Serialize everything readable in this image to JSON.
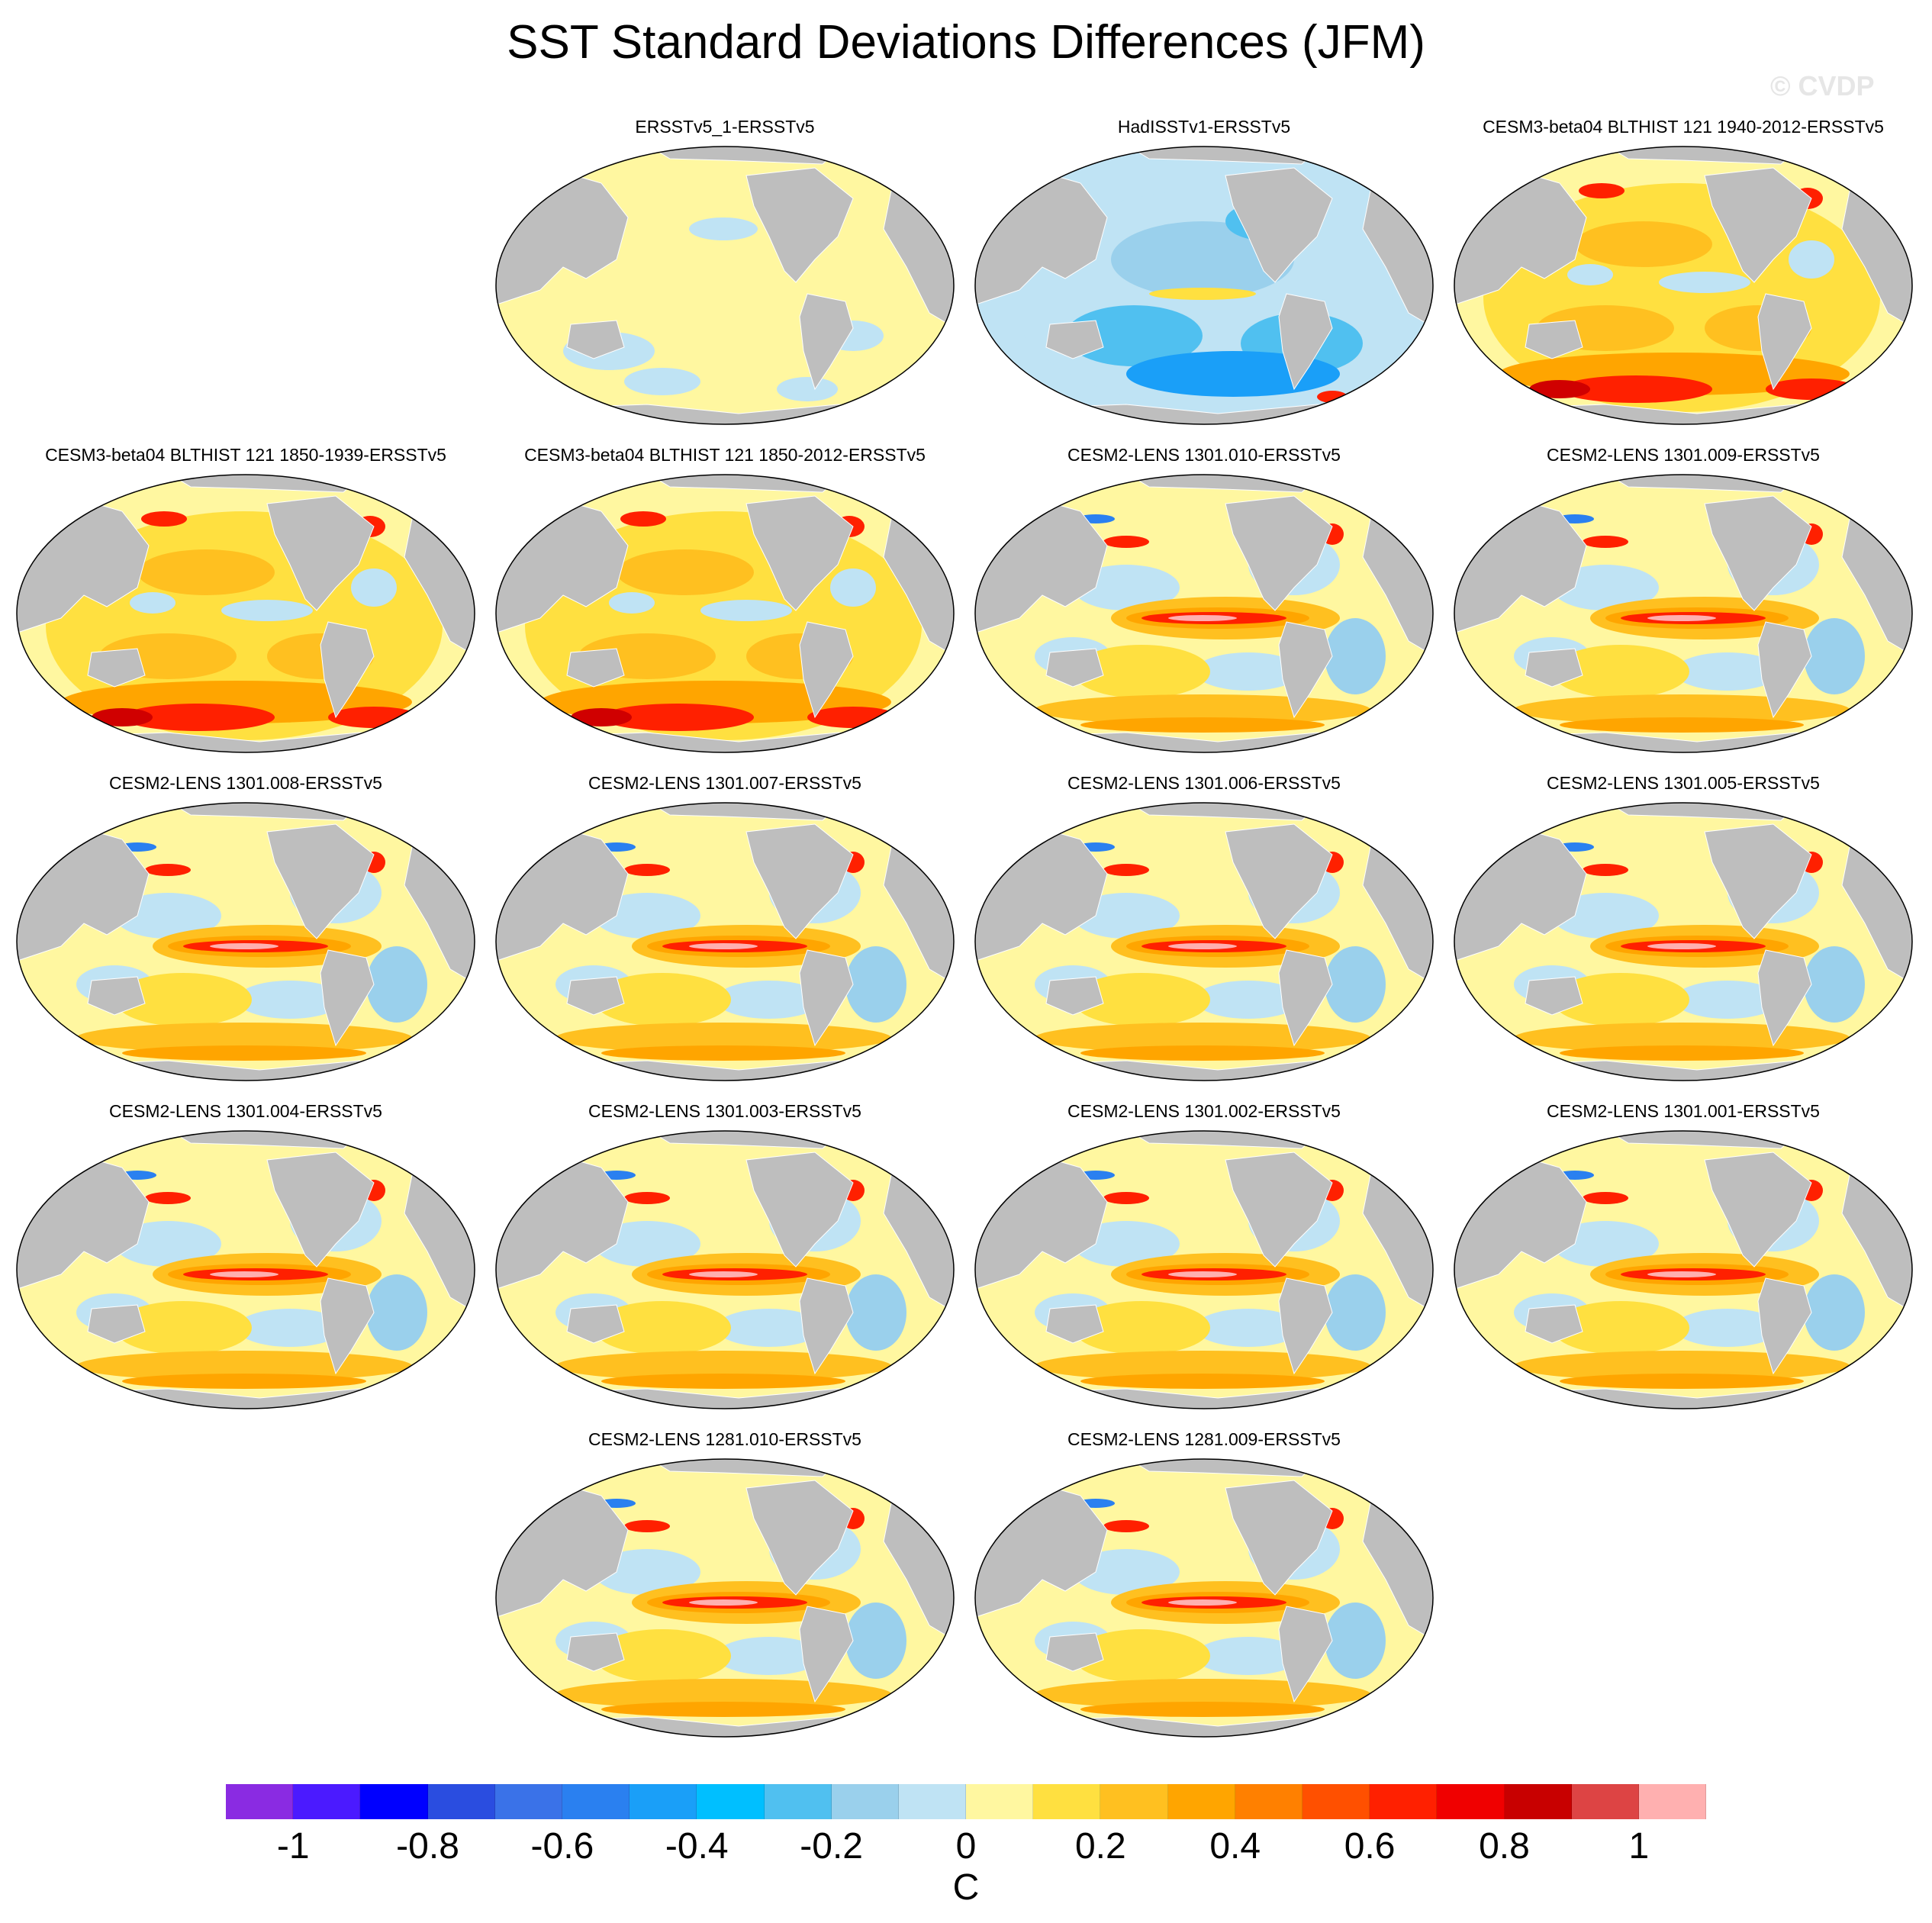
{
  "figure": {
    "title": "SST Standard Deviations Differences (JFM)",
    "watermark": "© CVDP",
    "units": "C"
  },
  "panels": [
    {
      "title": "ERSSTv5_1-ERSSTv5",
      "pattern": "near-zero"
    },
    {
      "title": "HadISSTv1-ERSSTv5",
      "pattern": "negative"
    },
    {
      "title": "CESM3-beta04 BLTHIST 121 1940-2012-ERSSTv5",
      "pattern": "cesm3"
    },
    {
      "title": "CESM3-beta04 BLTHIST 121 1850-1939-ERSSTv5",
      "pattern": "cesm3"
    },
    {
      "title": "CESM3-beta04 BLTHIST 121 1850-2012-ERSSTv5",
      "pattern": "cesm3"
    },
    {
      "title": "CESM2-LENS 1301.010-ERSSTv5",
      "pattern": "enso"
    },
    {
      "title": "CESM2-LENS 1301.009-ERSSTv5",
      "pattern": "enso"
    },
    {
      "title": "CESM2-LENS 1301.008-ERSSTv5",
      "pattern": "enso"
    },
    {
      "title": "CESM2-LENS 1301.007-ERSSTv5",
      "pattern": "enso"
    },
    {
      "title": "CESM2-LENS 1301.006-ERSSTv5",
      "pattern": "enso"
    },
    {
      "title": "CESM2-LENS 1301.005-ERSSTv5",
      "pattern": "enso"
    },
    {
      "title": "CESM2-LENS 1301.004-ERSSTv5",
      "pattern": "enso"
    },
    {
      "title": "CESM2-LENS 1301.003-ERSSTv5",
      "pattern": "enso"
    },
    {
      "title": "CESM2-LENS 1301.002-ERSSTv5",
      "pattern": "enso"
    },
    {
      "title": "CESM2-LENS 1301.001-ERSSTv5",
      "pattern": "enso"
    },
    {
      "title": "CESM2-LENS 1281.010-ERSSTv5",
      "pattern": "enso"
    },
    {
      "title": "CESM2-LENS 1281.009-ERSSTv5",
      "pattern": "enso"
    }
  ],
  "colorbar": {
    "labels": [
      "-1",
      "-0.8",
      "-0.6",
      "-0.4",
      "-0.2",
      "0",
      "0.2",
      "0.4",
      "0.6",
      "0.8",
      "1"
    ],
    "colors": [
      "#8a2be2",
      "#4b1aff",
      "#0000ff",
      "#2a4de0",
      "#3a72e8",
      "#2a80f0",
      "#1a9ff8",
      "#00bfff",
      "#50c0f0",
      "#9ad0ec",
      "#bfe3f4",
      "#fff7a0",
      "#ffe040",
      "#ffc020",
      "#ffa500",
      "#ff8000",
      "#ff5000",
      "#ff2000",
      "#f00000",
      "#c80000",
      "#dd4444",
      "#ffb0b0"
    ],
    "land_color": "#bebebe"
  }
}
